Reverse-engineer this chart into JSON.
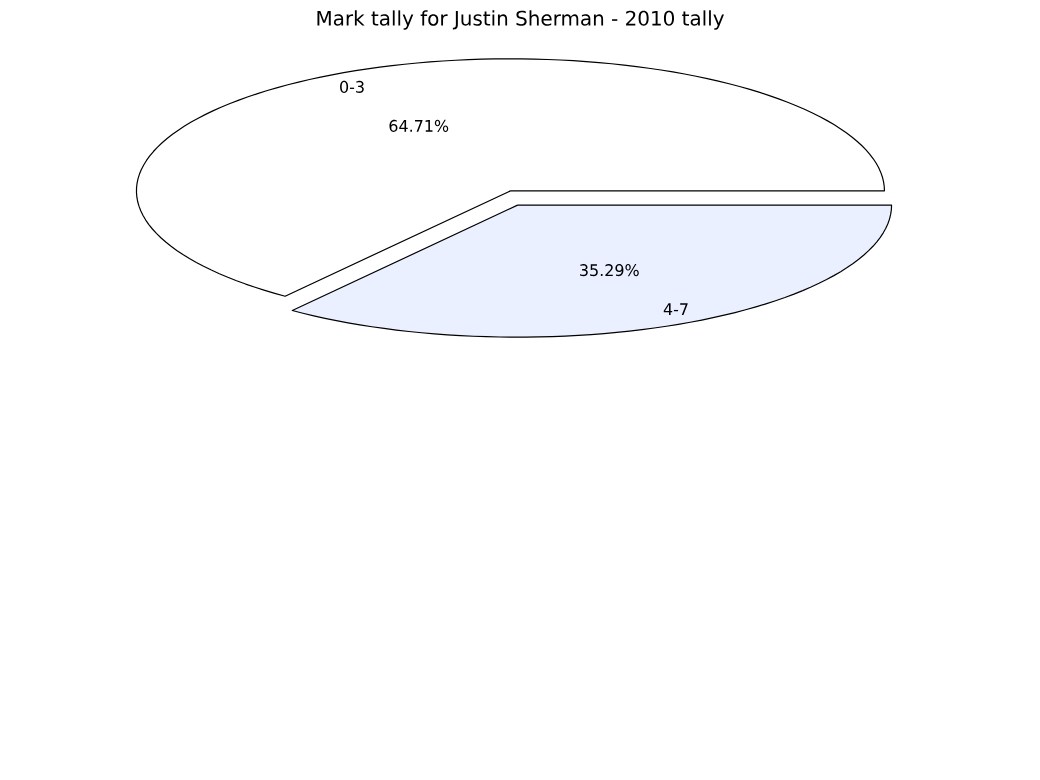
{
  "chart_data": {
    "type": "pie",
    "title": "Mark tally for Justin Sherman - 2010 tally",
    "categories": [
      "0-3",
      "4-7"
    ],
    "values": [
      64.71,
      35.29
    ],
    "value_labels": [
      "64.71%",
      "35.29%"
    ],
    "colors": [
      "#ffffff",
      "#eaf0ff"
    ]
  }
}
